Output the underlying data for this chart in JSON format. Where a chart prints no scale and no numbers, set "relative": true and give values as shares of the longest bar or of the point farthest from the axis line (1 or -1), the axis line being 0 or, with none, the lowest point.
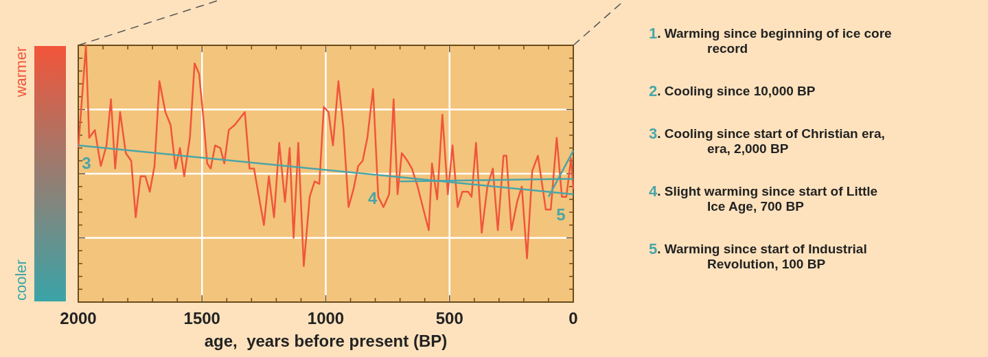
{
  "chart_data": {
    "type": "line",
    "relative": true,
    "xlabel": "age,  years before present (BP)",
    "xlim": [
      2000,
      0
    ],
    "xticks": [
      2000,
      {
        "value": 1900,
        "label": null
      },
      {
        "value": 1800,
        "label": null
      },
      {
        "value": 1700,
        "label": null
      },
      {
        "value": 1600,
        "label": null
      },
      1500,
      {
        "value": 1400,
        "label": null
      },
      {
        "value": 1300,
        "label": null
      },
      {
        "value": 1200,
        "label": null
      },
      {
        "value": 1100,
        "label": null
      },
      1000,
      {
        "value": 900,
        "label": null
      },
      {
        "value": 800,
        "label": null
      },
      {
        "value": 700,
        "label": null
      },
      {
        "value": 600,
        "label": null
      },
      500,
      {
        "value": 400,
        "label": null
      },
      {
        "value": 300,
        "label": null
      },
      {
        "value": 200,
        "label": null
      },
      {
        "value": 100,
        "label": null
      },
      0
    ],
    "grid": true,
    "line_style": "solid",
    "series": [
      {
        "color": "#f0553a",
        "x": [
          2000,
          1969,
          1956,
          1933,
          1909,
          1886,
          1868,
          1851,
          1831,
          1808,
          1786,
          1768,
          1748,
          1729,
          1711,
          1692,
          1672,
          1648,
          1627,
          1607,
          1589,
          1572,
          1549,
          1530,
          1512,
          1493,
          1479,
          1465,
          1447,
          1426,
          1410,
          1392,
          1368,
          1327,
          1308,
          1290,
          1250,
          1230,
          1209,
          1188,
          1165,
          1146,
          1130,
          1111,
          1089,
          1065,
          1045,
          1026,
          1008,
          989,
          971,
          949,
          929,
          908,
          888,
          869,
          851,
          832,
          809,
          788,
          767,
          744,
          726,
          710,
          693,
          670,
          652,
          629,
          584,
          571,
          550,
          529,
          507,
          488,
          467,
          448,
          425,
          411,
          393,
          370,
          347,
          325,
          305,
          282,
          270,
          250,
          227,
          208,
          187,
          166,
          143,
          111,
          91,
          67,
          46,
          28,
          9,
          0
        ],
        "values": [
          0.6,
          1.0,
          0.64,
          0.67,
          0.53,
          0.61,
          0.79,
          0.52,
          0.74,
          0.58,
          0.55,
          0.33,
          0.49,
          0.49,
          0.43,
          0.53,
          0.86,
          0.74,
          0.69,
          0.52,
          0.6,
          0.49,
          0.64,
          0.93,
          0.89,
          0.7,
          0.54,
          0.52,
          0.61,
          0.6,
          0.54,
          0.67,
          0.69,
          0.74,
          0.52,
          0.52,
          0.3,
          0.49,
          0.33,
          0.62,
          0.39,
          0.6,
          0.25,
          0.62,
          0.14,
          0.41,
          0.47,
          0.46,
          0.76,
          0.74,
          0.61,
          0.86,
          0.68,
          0.37,
          0.44,
          0.53,
          0.55,
          0.64,
          0.83,
          0.41,
          0.37,
          0.42,
          0.79,
          0.42,
          0.58,
          0.55,
          0.52,
          0.45,
          0.28,
          0.54,
          0.4,
          0.73,
          0.42,
          0.61,
          0.37,
          0.43,
          0.43,
          0.41,
          0.62,
          0.27,
          0.45,
          0.52,
          0.28,
          0.57,
          0.57,
          0.28,
          0.39,
          0.45,
          0.17,
          0.51,
          0.57,
          0.36,
          0.36,
          0.64,
          0.41,
          0.41,
          0.56,
          0.44
        ]
      },
      {
        "color": "#4aa5a8",
        "x": [
          2000,
          0
        ],
        "values": [
          0.61,
          0.42
        ]
      },
      {
        "color": "#4aa5a8",
        "x": [
          700,
          0
        ],
        "values": [
          0.47,
          0.48
        ]
      },
      {
        "color": "#4aa5a8",
        "x": [
          100,
          0
        ],
        "values": [
          0.41,
          0.59
        ]
      }
    ],
    "annotations": [
      "3",
      "4",
      "5",
      "warmer",
      "cooler",
      "1. Warming since beginning of ice core record",
      "2. Cooling since 10,000 BP",
      "3. Cooling since start of Christian era, era, 2,000 BP",
      "4. Slight warming since start of Little Ice Age, 700 BP",
      "5. Warming since start of Industrial Revolution, 100 BP"
    ]
  }
}
